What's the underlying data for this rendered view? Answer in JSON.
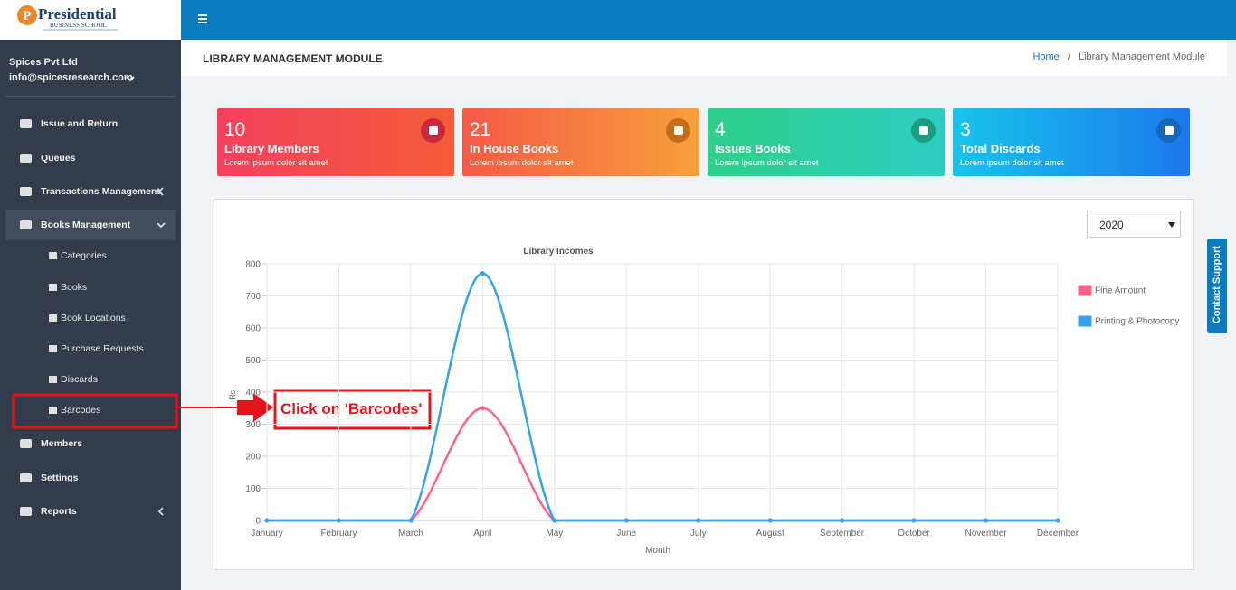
{
  "logo": {
    "mark": "P",
    "name": "Presidential",
    "subtitle": "BUSINESS SCHOOL"
  },
  "sidebar": {
    "company": "Spices Pvt Ltd",
    "email": "info@spicesresearch.com",
    "menu": [
      "Issue and Return",
      "Queues",
      "Transactions Management",
      "Books Management",
      "Members",
      "Settings",
      "Reports"
    ],
    "submenu": [
      "Categories",
      "Books",
      "Book Locations",
      "Purchase Requests",
      "Discards",
      "Barcodes"
    ]
  },
  "page_title": "LIBRARY MANAGEMENT MODULE",
  "breadcrumb": {
    "home": "Home",
    "separator": "/",
    "current": "Library Management Module"
  },
  "cards": [
    {
      "value": 10,
      "label": "Library Members",
      "description": "Lorem ipsum dolor sit amet"
    },
    {
      "value": 21,
      "label": "In House Books",
      "description": "Lorem ipsum dolor sit amet"
    },
    {
      "value": 4,
      "label": "Issues Books",
      "description": "Lorem ipsum dolor sit amet"
    },
    {
      "value": 3,
      "label": "Total Discards",
      "description": "Lorem ipsum dolor sit amet"
    }
  ],
  "year_select": "2020",
  "contact_support": "Contact Support",
  "annotation": "Click on 'Barcodes'",
  "chart_data": {
    "type": "line",
    "title": "Library Incomes",
    "x_label": "Month",
    "y_label": "Rs.",
    "categories": [
      "January",
      "February",
      "March",
      "April",
      "May",
      "June",
      "July",
      "August",
      "September",
      "October",
      "November",
      "December"
    ],
    "series": [
      {
        "name": "Fine Amount",
        "color": "#ff6384",
        "values": [
          0,
          0,
          0,
          350,
          0,
          0,
          0,
          0,
          0,
          0,
          0,
          0
        ]
      },
      {
        "name": "Printing & Photocopy",
        "color": "#36a2eb",
        "values": [
          0,
          0,
          0,
          770,
          0,
          0,
          0,
          0,
          0,
          0,
          0,
          0
        ]
      }
    ],
    "ylim": [
      0,
      800
    ],
    "yticks": [
      0,
      100,
      200,
      300,
      400,
      500,
      600,
      700,
      800
    ],
    "grid": true,
    "legend": "right"
  }
}
